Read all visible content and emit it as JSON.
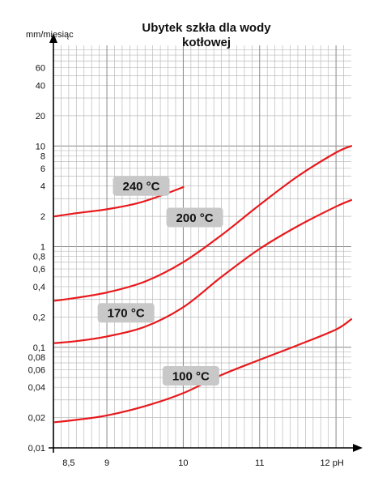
{
  "chart_data": {
    "type": "line",
    "title_line1": "Ubytek szkła dla wody",
    "title_line2": "kotłowej",
    "ylabel": "mm/miesiąc",
    "xlabel": "pH",
    "yscale": "log",
    "xlim": [
      8.3,
      12.2
    ],
    "ylim": [
      0.01,
      100
    ],
    "grid": true,
    "x_ticks": [
      8.5,
      9,
      10,
      11,
      12
    ],
    "x_tick_labels": [
      "8,5",
      "9",
      "10",
      "11",
      "12 pH"
    ],
    "y_ticks": [
      0.01,
      0.02,
      0.04,
      0.06,
      0.08,
      0.1,
      0.2,
      0.4,
      0.6,
      0.8,
      1,
      2,
      4,
      6,
      8,
      10,
      20,
      40,
      60
    ],
    "y_tick_labels": [
      "0,01",
      "0,02",
      "0,04",
      "0,06",
      "0,08",
      "0,1",
      "0,2",
      "0,4",
      "0,6",
      "0,8",
      "1",
      "2",
      "4",
      "6",
      "8",
      "10",
      "20",
      "40",
      "60"
    ],
    "series": [
      {
        "name": "240 °C",
        "color": "#e8191c",
        "x": [
          8.32,
          8.6,
          9.0,
          9.4,
          9.7,
          10.0
        ],
        "y": [
          2.0,
          2.15,
          2.35,
          2.7,
          3.2,
          3.9
        ]
      },
      {
        "name": "200 °C",
        "color": "#e8191c",
        "x": [
          8.32,
          8.6,
          9.0,
          9.5,
          10.0,
          10.5,
          11.0,
          11.5,
          12.0,
          12.2
        ],
        "y": [
          0.29,
          0.31,
          0.35,
          0.45,
          0.7,
          1.3,
          2.6,
          5.0,
          8.6,
          10.0
        ]
      },
      {
        "name": "170 °C",
        "color": "#e8191c",
        "x": [
          8.32,
          8.6,
          9.0,
          9.5,
          10.0,
          10.5,
          11.0,
          11.5,
          12.0,
          12.2
        ],
        "y": [
          0.11,
          0.115,
          0.128,
          0.16,
          0.25,
          0.5,
          0.95,
          1.6,
          2.5,
          2.9
        ]
      },
      {
        "name": "100 °C",
        "color": "#e8191c",
        "x": [
          8.32,
          8.6,
          9.0,
          9.5,
          10.0,
          10.5,
          11.0,
          11.5,
          12.0,
          12.2
        ],
        "y": [
          0.018,
          0.019,
          0.021,
          0.026,
          0.035,
          0.053,
          0.075,
          0.105,
          0.15,
          0.19
        ]
      }
    ]
  }
}
